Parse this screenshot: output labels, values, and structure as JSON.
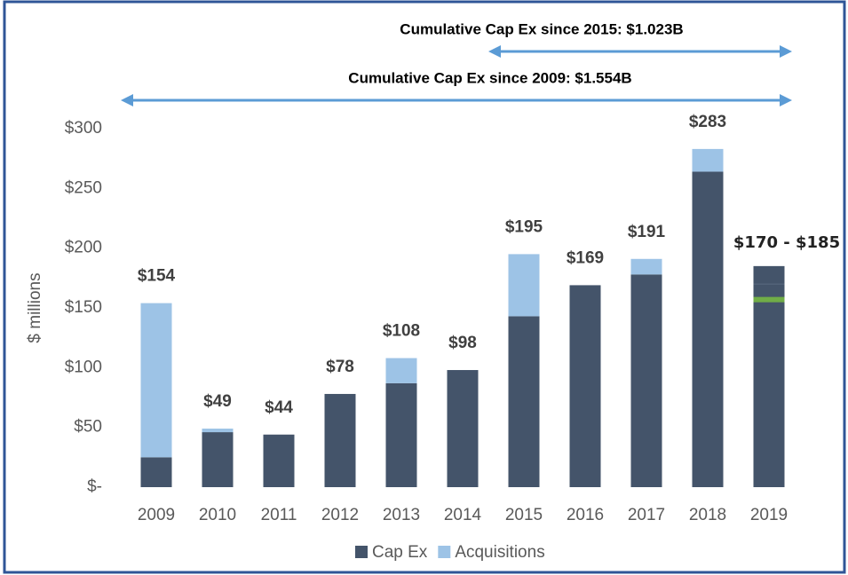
{
  "chart_data": {
    "type": "stacked_bar",
    "y_label": "$ millions",
    "categories": [
      "2009",
      "2010",
      "2011",
      "2012",
      "2013",
      "2014",
      "2015",
      "2016",
      "2017",
      "2018",
      "2019"
    ],
    "series": [
      {
        "name": "Cap Ex",
        "color": "#44546a",
        "values": [
          25,
          46,
          44,
          78,
          87,
          98,
          143,
          169,
          178,
          264,
          170
        ]
      },
      {
        "name": "Acquisitions",
        "color": "#9dc3e6",
        "values": [
          129,
          3,
          0,
          0,
          21,
          0,
          52,
          0,
          13,
          19,
          null
        ]
      }
    ],
    "total_labels": [
      "$154",
      "$49",
      "$44",
      "$78",
      "$108",
      "$98",
      "$195",
      "$169",
      "$191",
      "$283",
      "$170 - $185"
    ],
    "forecast_range": {
      "category": "2019",
      "low": 170,
      "high": 185,
      "color": "#44546a"
    },
    "marker": {
      "category": "2019",
      "value": 157,
      "color": "#70ad47"
    },
    "ylim": [
      0,
      300
    ],
    "yticks": [
      {
        "value": 0,
        "label": "$-"
      },
      {
        "value": 50,
        "label": "$50"
      },
      {
        "value": 100,
        "label": "$100"
      },
      {
        "value": 150,
        "label": "$150"
      },
      {
        "value": 200,
        "label": "$200"
      },
      {
        "value": 250,
        "label": "$250"
      },
      {
        "value": 300,
        "label": "$300"
      }
    ],
    "annotations": [
      {
        "text": "Cumulative Cap Ex since 2015: $1.023B",
        "from": "2015",
        "to": "2019",
        "color": "#5b9bd5"
      },
      {
        "text": "Cumulative Cap Ex since 2009: $1.554B",
        "from": "2009",
        "to": "2019",
        "color": "#5b9bd5"
      }
    ],
    "legend": "bottom"
  }
}
